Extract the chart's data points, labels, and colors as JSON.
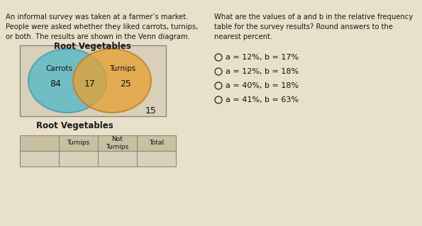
{
  "bg_color": "#e8e0c8",
  "left_text_lines": [
    "An informal survey was taken at a farmer’s market.",
    "People were asked whether they liked carrots, turnips,",
    "or both. The results are shown in the Venn diagram."
  ],
  "right_text_lines": [
    "What are the values of a and b in the relative frequency",
    "table for the survey results? Round answers to the",
    "nearest percent."
  ],
  "venn_title": "Root Vegetables",
  "venn_title2": "Root Vegetables",
  "circle_left_label": "Carrots",
  "circle_right_label": "Turnips",
  "val_left": "84",
  "val_middle": "17",
  "val_right": "25",
  "val_outside": "15",
  "table_cols": [
    "Turnips",
    "Not\nTurnips",
    "Total"
  ],
  "options": [
    "a = 12%, b = 17%",
    "a = 12%, b = 18%",
    "a = 40%, b = 18%",
    "a = 41%, b = 63%"
  ],
  "circle_left_color": "#4db8c8",
  "circle_right_color": "#e8a030",
  "circle_left_edge": "#3a9ab0",
  "circle_right_edge": "#c07820",
  "rect_color": "#d8d0a8",
  "rect_edge": "#888888",
  "font_color": "#1a1a1a"
}
